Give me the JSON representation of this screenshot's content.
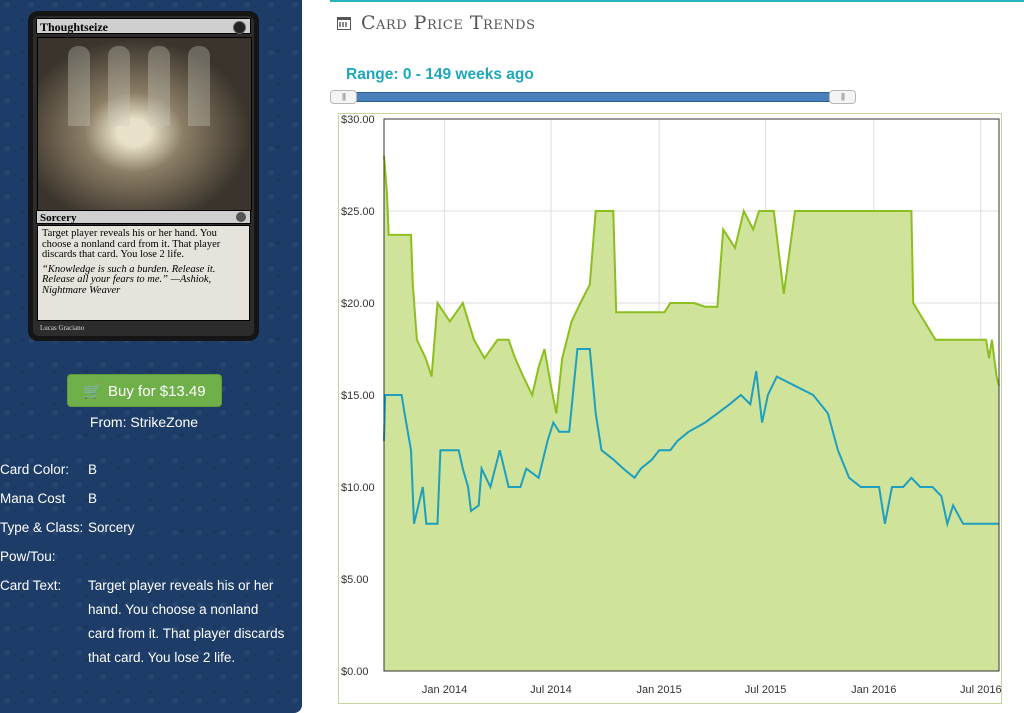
{
  "card": {
    "name": "Thoughtseize",
    "type_line": "Sorcery",
    "rules_text": "Target player reveals his or her hand. You choose a nonland card from it. That player discards that card. You lose 2 life.",
    "flavor_text": "“Knowledge is such a burden. Release it. Release all your fears to me.” —Ashiok, Nightmare Weaver",
    "artist": "Lucas Graciano"
  },
  "buy": {
    "label": "Buy for $13.49",
    "from": "From: StrikeZone"
  },
  "details": [
    {
      "label": "Card Color:",
      "value": "B"
    },
    {
      "label": "Mana Cost",
      "value": "B"
    },
    {
      "label": "Type & Class:",
      "value": "Sorcery"
    },
    {
      "label": "Pow/Tou:",
      "value": ""
    },
    {
      "label": "Card Text:",
      "value": "Target player reveals his or her hand. You choose a nonland card from it. That player discards that card. You lose 2 life."
    }
  ],
  "header": {
    "title": "Card Price Trends",
    "icon": "calendar-icon",
    "accent_color": "#2bb3c0"
  },
  "range": {
    "label": "Range: 0 - 149 weeks ago",
    "min_weeks_ago": 0,
    "max_weeks_ago": 149
  },
  "colors": {
    "sidebar_bg": "#1d3d68",
    "buy_button": "#6fb04a",
    "range_text": "#1ea7bd",
    "series_high": "#8cbf1e",
    "series_high_fill": "#cfe39a",
    "series_low": "#1e9fc0"
  },
  "chart_data": {
    "type": "line",
    "title": "",
    "xlabel": "",
    "ylabel": "",
    "y_tick_labels": [
      "$0.00",
      "$5.00",
      "$10.00",
      "$15.00",
      "$20.00",
      "$25.00",
      "$30.00"
    ],
    "ylim": [
      0,
      30
    ],
    "x_tick_labels": [
      "Jan 2014",
      "Jul 2014",
      "Jan 2015",
      "Jul 2015",
      "Jan 2016",
      "Jul 2016"
    ],
    "xlim": [
      "2013-09-20",
      "2016-08-01"
    ],
    "grid": true,
    "series": [
      {
        "name": "",
        "color": "#8cbf1e",
        "filled": true,
        "points": [
          [
            "2013-09-20",
            28.0
          ],
          [
            "2013-09-25",
            26.0
          ],
          [
            "2013-09-28",
            23.7
          ],
          [
            "2013-11-05",
            23.7
          ],
          [
            "2013-11-08",
            21.0
          ],
          [
            "2013-11-15",
            18.0
          ],
          [
            "2013-11-30",
            17.0
          ],
          [
            "2013-12-10",
            16.0
          ],
          [
            "2013-12-20",
            20.0
          ],
          [
            "2014-01-10",
            19.0
          ],
          [
            "2014-02-01",
            20.0
          ],
          [
            "2014-02-20",
            18.0
          ],
          [
            "2014-03-10",
            17.0
          ],
          [
            "2014-04-01",
            18.0
          ],
          [
            "2014-04-20",
            18.0
          ],
          [
            "2014-05-01",
            17.0
          ],
          [
            "2014-05-15",
            16.0
          ],
          [
            "2014-05-30",
            15.0
          ],
          [
            "2014-06-10",
            16.5
          ],
          [
            "2014-06-20",
            17.5
          ],
          [
            "2014-07-01",
            15.5
          ],
          [
            "2014-07-10",
            14.0
          ],
          [
            "2014-07-20",
            17.0
          ],
          [
            "2014-08-05",
            19.0
          ],
          [
            "2014-08-20",
            20.0
          ],
          [
            "2014-09-05",
            21.0
          ],
          [
            "2014-09-15",
            25.0
          ],
          [
            "2014-10-15",
            25.0
          ],
          [
            "2014-10-20",
            19.5
          ],
          [
            "2015-01-10",
            19.5
          ],
          [
            "2015-01-20",
            20.0
          ],
          [
            "2015-03-01",
            20.0
          ],
          [
            "2015-03-20",
            19.8
          ],
          [
            "2015-04-10",
            19.8
          ],
          [
            "2015-04-20",
            24.0
          ],
          [
            "2015-05-10",
            23.0
          ],
          [
            "2015-05-25",
            25.0
          ],
          [
            "2015-06-10",
            24.0
          ],
          [
            "2015-06-20",
            25.0
          ],
          [
            "2015-07-15",
            25.0
          ],
          [
            "2015-08-01",
            20.5
          ],
          [
            "2015-08-20",
            25.0
          ],
          [
            "2015-09-15",
            25.0
          ],
          [
            "2015-10-01",
            25.0
          ],
          [
            "2016-03-05",
            25.0
          ],
          [
            "2016-03-08",
            20.0
          ],
          [
            "2016-04-15",
            18.0
          ],
          [
            "2016-07-10",
            18.0
          ],
          [
            "2016-07-15",
            17.0
          ],
          [
            "2016-07-20",
            18.0
          ],
          [
            "2016-07-28",
            16.0
          ],
          [
            "2016-08-01",
            15.5
          ]
        ]
      },
      {
        "name": "",
        "color": "#1e9fc0",
        "filled": false,
        "points": [
          [
            "2013-09-20",
            12.5
          ],
          [
            "2013-09-22",
            15.0
          ],
          [
            "2013-10-20",
            15.0
          ],
          [
            "2013-10-25",
            14.0
          ],
          [
            "2013-11-05",
            12.0
          ],
          [
            "2013-11-10",
            8.0
          ],
          [
            "2013-11-25",
            10.0
          ],
          [
            "2013-12-01",
            8.0
          ],
          [
            "2013-12-20",
            8.0
          ],
          [
            "2013-12-25",
            12.0
          ],
          [
            "2014-01-25",
            12.0
          ],
          [
            "2014-02-01",
            11.0
          ],
          [
            "2014-02-10",
            10.0
          ],
          [
            "2014-02-15",
            8.7
          ],
          [
            "2014-02-28",
            9.0
          ],
          [
            "2014-03-05",
            11.0
          ],
          [
            "2014-03-20",
            10.0
          ],
          [
            "2014-04-05",
            12.0
          ],
          [
            "2014-04-20",
            10.0
          ],
          [
            "2014-05-10",
            10.0
          ],
          [
            "2014-05-20",
            11.0
          ],
          [
            "2014-06-10",
            10.5
          ],
          [
            "2014-06-25",
            12.5
          ],
          [
            "2014-07-05",
            13.5
          ],
          [
            "2014-07-15",
            13.0
          ],
          [
            "2014-08-01",
            13.0
          ],
          [
            "2014-08-15",
            17.5
          ],
          [
            "2014-09-05",
            17.5
          ],
          [
            "2014-09-15",
            14.0
          ],
          [
            "2014-09-25",
            12.0
          ],
          [
            "2014-10-15",
            11.5
          ],
          [
            "2014-11-01",
            11.0
          ],
          [
            "2014-11-20",
            10.5
          ],
          [
            "2014-12-01",
            11.0
          ],
          [
            "2014-12-20",
            11.5
          ],
          [
            "2015-01-01",
            12.0
          ],
          [
            "2015-01-20",
            12.0
          ],
          [
            "2015-02-01",
            12.5
          ],
          [
            "2015-02-20",
            13.0
          ],
          [
            "2015-03-20",
            13.5
          ],
          [
            "2015-04-10",
            14.0
          ],
          [
            "2015-05-01",
            14.5
          ],
          [
            "2015-05-20",
            15.0
          ],
          [
            "2015-06-05",
            14.5
          ],
          [
            "2015-06-15",
            16.3
          ],
          [
            "2015-06-25",
            13.5
          ],
          [
            "2015-07-05",
            15.0
          ],
          [
            "2015-07-20",
            16.0
          ],
          [
            "2015-08-20",
            15.5
          ],
          [
            "2015-09-20",
            15.0
          ],
          [
            "2015-10-15",
            14.0
          ],
          [
            "2015-11-01",
            12.0
          ],
          [
            "2015-11-20",
            10.5
          ],
          [
            "2015-12-10",
            10.0
          ],
          [
            "2016-01-10",
            10.0
          ],
          [
            "2016-01-20",
            8.0
          ],
          [
            "2016-02-01",
            10.0
          ],
          [
            "2016-02-20",
            10.0
          ],
          [
            "2016-03-05",
            10.5
          ],
          [
            "2016-03-20",
            10.0
          ],
          [
            "2016-04-10",
            10.0
          ],
          [
            "2016-04-25",
            9.5
          ],
          [
            "2016-05-05",
            8.0
          ],
          [
            "2016-05-15",
            9.0
          ],
          [
            "2016-06-01",
            8.0
          ],
          [
            "2016-08-01",
            8.0
          ]
        ]
      }
    ]
  }
}
